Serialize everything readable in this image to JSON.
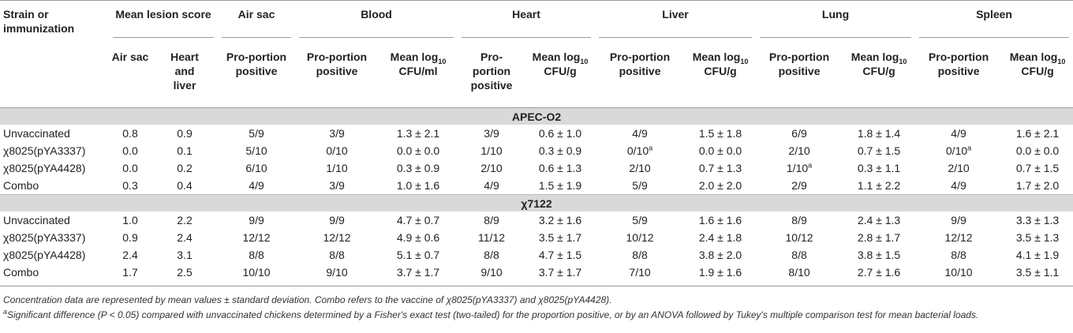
{
  "header": {
    "strain_col": "Strain or immunization",
    "groups": [
      "Mean lesion score",
      "Air sac",
      "Blood",
      "Heart",
      "Liver",
      "Lung",
      "Spleen"
    ],
    "lesion_sub": [
      "Air sac",
      "Heart and liver"
    ],
    "proportion_label": "Pro-portion positive",
    "mean_prefix": "Mean log",
    "mean_sub": "10",
    "unit_ml": "CFU/ml",
    "unit_g": "CFU/g"
  },
  "sections": [
    {
      "title": "APEC-O2",
      "rows": [
        {
          "strain": "Unvaccinated",
          "cells": [
            "0.8",
            "0.9",
            "5/9",
            "3/9",
            "1.3 ± 2.1",
            "3/9",
            "0.6 ± 1.0",
            "4/9",
            "1.5 ± 1.8",
            "6/9",
            "1.8 ± 1.4",
            "4/9",
            "1.6 ± 2.1"
          ]
        },
        {
          "strain": "χ8025(pYA3337)",
          "cells": [
            "0.0",
            "0.1",
            "5/10",
            "0/10",
            "0.0 ± 0.0",
            "1/10",
            "0.3 ± 0.9",
            "0/10",
            "0.0 ± 0.0",
            "2/10",
            "0.7 ± 1.5",
            "0/10",
            "0.0 ± 0.0"
          ],
          "sup": {
            "7": "a",
            "11": "a"
          }
        },
        {
          "strain": "χ8025(pYA4428)",
          "cells": [
            "0.0",
            "0.2",
            "6/10",
            "1/10",
            "0.3 ± 0.9",
            "2/10",
            "0.6 ± 1.3",
            "2/10",
            "0.7 ± 1.3",
            "1/10",
            "0.3 ± 1.1",
            "2/10",
            "0.7 ± 1.5"
          ],
          "sup": {
            "9": "a"
          }
        },
        {
          "strain": "Combo",
          "cells": [
            "0.3",
            "0.4",
            "4/9",
            "3/9",
            "1.0 ± 1.6",
            "4/9",
            "1.5 ± 1.9",
            "5/9",
            "2.0 ± 2.0",
            "2/9",
            "1.1 ± 2.2",
            "4/9",
            "1.7 ± 2.0"
          ]
        }
      ]
    },
    {
      "title": "χ7122",
      "rows": [
        {
          "strain": "Unvaccinated",
          "cells": [
            "1.0",
            "2.2",
            "9/9",
            "9/9",
            "4.7 ± 0.7",
            "8/9",
            "3.2 ± 1.6",
            "5/9",
            "1.6 ± 1.6",
            "8/9",
            "2.4 ± 1.3",
            "9/9",
            "3.3 ± 1.3"
          ]
        },
        {
          "strain": "χ8025(pYA3337)",
          "cells": [
            "0.9",
            "2.4",
            "12/12",
            "12/12",
            "4.9 ± 0.6",
            "11/12",
            "3.5 ± 1.7",
            "10/12",
            "2.4 ± 1.8",
            "10/12",
            "2.8 ± 1.7",
            "12/12",
            "3.5 ± 1.3"
          ]
        },
        {
          "strain": "χ8025(pYA4428)",
          "cells": [
            "2.4",
            "3.1",
            "8/8",
            "8/8",
            "5.1 ± 0.7",
            "8/8",
            "4.7 ± 1.5",
            "8/8",
            "3.8 ± 2.0",
            "8/8",
            "3.8 ± 1.5",
            "8/8",
            "4.1 ± 1.9"
          ]
        },
        {
          "strain": "Combo",
          "cells": [
            "1.7",
            "2.5",
            "10/10",
            "9/10",
            "3.7 ± 1.7",
            "9/10",
            "3.7 ± 1.7",
            "7/10",
            "1.9 ± 1.6",
            "8/10",
            "2.7 ± 1.6",
            "10/10",
            "3.5 ± 1.1"
          ]
        }
      ]
    }
  ],
  "footnotes": {
    "note1": "Concentration data are represented by mean values ± standard deviation. Combo refers to the vaccine of χ8025(pYA3337) and χ8025(pYA4428).",
    "note2_marker": "a",
    "note2": "Significant difference (P < 0.05) compared with unvaccinated chickens determined by a Fisher's exact test (two-tailed) for the proportion positive, or by an ANOVA followed by Tukey's multiple comparison test for mean bacterial loads."
  }
}
